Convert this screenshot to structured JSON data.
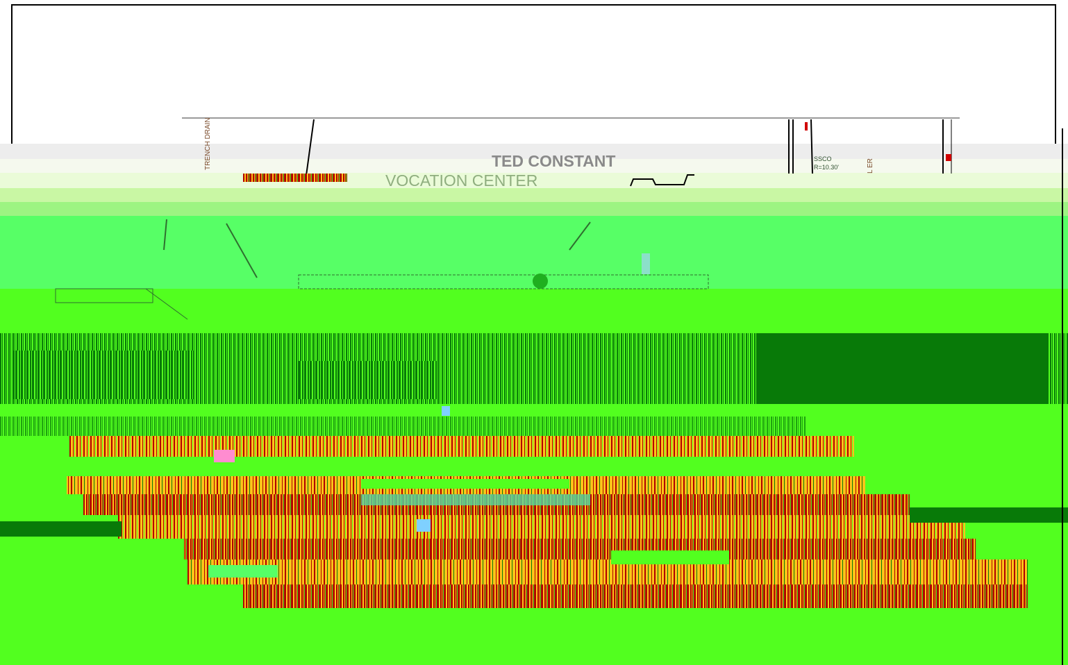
{
  "map": {
    "labels": {
      "building_line1": "TED CONSTANT",
      "building_line2": "VOCATION CENTER",
      "trench_drain": "TRENCH DRAIN",
      "ssco": "SSCO",
      "ssco_rim": "R=10.30'",
      "edge_letters": "L ER"
    },
    "colors": {
      "frame": "#000000",
      "sheet": "#ffffff",
      "lawn_bright": "#52ff1f",
      "lawn_mid": "#57ff66",
      "lawn_pale": "#c9f7a4",
      "grass_dark": "#087a08",
      "parking_yellow": "#fcc419",
      "parking_red": "#b00000",
      "label_gray": "#8a8a8a"
    }
  }
}
